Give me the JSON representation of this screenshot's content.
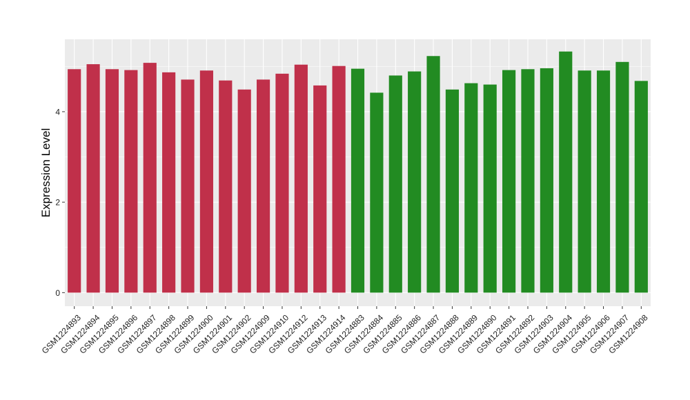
{
  "chart_data": {
    "type": "bar",
    "title": "",
    "xlabel": "",
    "ylabel": "Expression Level",
    "ylim": [
      -0.3,
      5.6
    ],
    "yticks": [
      0,
      2,
      4
    ],
    "grid": true,
    "legend": "none",
    "colors": {
      "group1": "#c0304a",
      "group2": "#228b22",
      "panel": "#ebebeb",
      "gridline": "#ffffff"
    },
    "categories": [
      "GSM1224893",
      "GSM1224894",
      "GSM1224895",
      "GSM1224896",
      "GSM1224897",
      "GSM1224898",
      "GSM1224899",
      "GSM1224900",
      "GSM1224901",
      "GSM1224902",
      "GSM1224909",
      "GSM1224910",
      "GSM1224912",
      "GSM1224913",
      "GSM1224914",
      "GSM1224883",
      "GSM1224884",
      "GSM1224885",
      "GSM1224886",
      "GSM1224887",
      "GSM1224888",
      "GSM1224889",
      "GSM1224890",
      "GSM1224891",
      "GSM1224892",
      "GSM1224903",
      "GSM1224904",
      "GSM1224905",
      "GSM1224906",
      "GSM1224907",
      "GSM1224908"
    ],
    "values": [
      4.94,
      5.05,
      4.94,
      4.92,
      5.08,
      4.87,
      4.71,
      4.91,
      4.69,
      4.49,
      4.71,
      4.84,
      5.04,
      4.58,
      5.01,
      4.95,
      4.42,
      4.8,
      4.89,
      5.23,
      4.49,
      4.63,
      4.6,
      4.92,
      4.94,
      4.96,
      5.33,
      4.91,
      4.91,
      5.1,
      4.68
    ],
    "groups": [
      "group1",
      "group1",
      "group1",
      "group1",
      "group1",
      "group1",
      "group1",
      "group1",
      "group1",
      "group1",
      "group1",
      "group1",
      "group1",
      "group1",
      "group1",
      "group2",
      "group2",
      "group2",
      "group2",
      "group2",
      "group2",
      "group2",
      "group2",
      "group2",
      "group2",
      "group2",
      "group2",
      "group2",
      "group2",
      "group2",
      "group2"
    ]
  }
}
